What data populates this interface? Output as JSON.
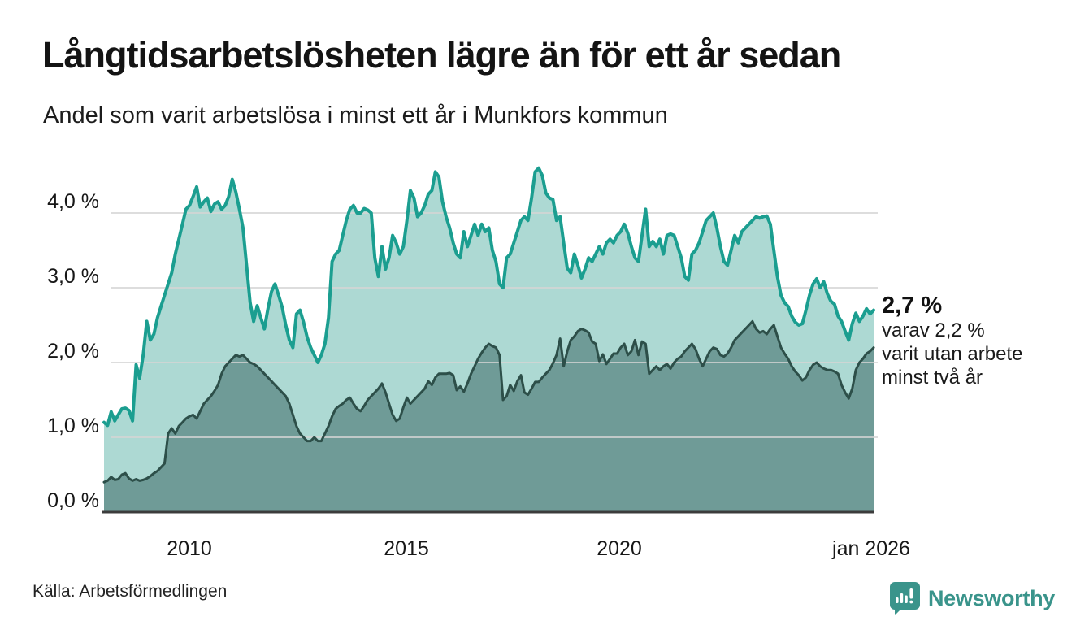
{
  "title": "Långtidsarbetslösheten lägre än för ett år sedan",
  "subtitle": "Andel som varit arbetslösa i minst ett år i Munkfors kommun",
  "annotation": {
    "value_label": "2,7 %",
    "line1": "varav 2,2 %",
    "line2": "varit utan arbete",
    "line3": "minst två år"
  },
  "source": "Källa: Arbetsförmedlingen",
  "brand": "Newsworthy",
  "colors": {
    "series1_line": "#1b9e90",
    "series1_fill": "#add9d3",
    "series2_line": "#2d4f49",
    "series2_fill": "#6f9b97",
    "grid": "#d4d4d4",
    "axis": "#3c3c3c",
    "logo": "#3a948b"
  },
  "chart_data": {
    "type": "area",
    "title": "Andel som varit arbetslösa i minst ett år i Munkfors kommun",
    "xlabel": "",
    "ylabel": "",
    "x_start": "2008-01",
    "x_end": "2026-01",
    "x_interval": "monthly",
    "ylim": [
      0,
      4.8
    ],
    "grid": true,
    "legend": "none",
    "yticks": [
      {
        "label": "0,0 %",
        "value": 0
      },
      {
        "label": "1,0 %",
        "value": 1
      },
      {
        "label": "2,0 %",
        "value": 2
      },
      {
        "label": "3,0 %",
        "value": 3
      },
      {
        "label": "4,0 %",
        "value": 4
      }
    ],
    "xticks": [
      {
        "label": "2010"
      },
      {
        "label": "2015"
      },
      {
        "label": "2020"
      },
      {
        "label": "jan 2026"
      }
    ],
    "series": [
      {
        "name": "Arbetslösa minst ett år",
        "end_value": 2.7,
        "end_label": "2,7 %",
        "values": [
          1.2,
          1.16,
          1.34,
          1.22,
          1.3,
          1.38,
          1.39,
          1.36,
          1.22,
          1.97,
          1.79,
          2.1,
          2.55,
          2.3,
          2.38,
          2.6,
          2.75,
          2.9,
          3.05,
          3.2,
          3.45,
          3.65,
          3.85,
          4.05,
          4.1,
          4.22,
          4.35,
          4.08,
          4.15,
          4.2,
          4.02,
          4.12,
          4.15,
          4.05,
          4.1,
          4.22,
          4.45,
          4.28,
          4.05,
          3.8,
          3.3,
          2.8,
          2.55,
          2.76,
          2.6,
          2.45,
          2.72,
          2.95,
          3.05,
          2.9,
          2.74,
          2.5,
          2.3,
          2.2,
          2.65,
          2.7,
          2.54,
          2.34,
          2.2,
          2.1,
          2.0,
          2.1,
          2.25,
          2.6,
          3.35,
          3.45,
          3.5,
          3.7,
          3.9,
          4.05,
          4.1,
          4.0,
          4.0,
          4.06,
          4.04,
          4.0,
          3.4,
          3.15,
          3.55,
          3.25,
          3.4,
          3.7,
          3.6,
          3.45,
          3.55,
          3.9,
          4.3,
          4.2,
          3.95,
          4.0,
          4.1,
          4.25,
          4.3,
          4.55,
          4.48,
          4.15,
          3.95,
          3.8,
          3.6,
          3.45,
          3.4,
          3.75,
          3.55,
          3.7,
          3.85,
          3.7,
          3.85,
          3.75,
          3.8,
          3.5,
          3.35,
          3.05,
          3.0,
          3.4,
          3.45,
          3.6,
          3.75,
          3.9,
          3.95,
          3.9,
          4.2,
          4.55,
          4.6,
          4.5,
          4.27,
          4.2,
          4.18,
          3.9,
          3.95,
          3.6,
          3.26,
          3.2,
          3.45,
          3.3,
          3.13,
          3.25,
          3.4,
          3.35,
          3.45,
          3.55,
          3.45,
          3.6,
          3.65,
          3.6,
          3.7,
          3.75,
          3.85,
          3.73,
          3.55,
          3.4,
          3.35,
          3.7,
          4.05,
          3.55,
          3.62,
          3.55,
          3.65,
          3.45,
          3.7,
          3.72,
          3.7,
          3.55,
          3.4,
          3.15,
          3.1,
          3.45,
          3.5,
          3.6,
          3.75,
          3.9,
          3.95,
          4.0,
          3.8,
          3.55,
          3.35,
          3.3,
          3.5,
          3.7,
          3.6,
          3.75,
          3.8,
          3.85,
          3.9,
          3.95,
          3.93,
          3.95,
          3.96,
          3.85,
          3.5,
          3.15,
          2.9,
          2.8,
          2.75,
          2.62,
          2.54,
          2.5,
          2.52,
          2.7,
          2.9,
          3.05,
          3.12,
          3.0,
          3.08,
          2.92,
          2.82,
          2.78,
          2.62,
          2.55,
          2.42,
          2.3,
          2.52,
          2.66,
          2.55,
          2.62,
          2.72,
          2.65,
          2.7
        ]
      },
      {
        "name": "Arbetslösa minst två år",
        "end_value": 2.2,
        "end_label": "2,2 %",
        "values": [
          0.4,
          0.42,
          0.47,
          0.43,
          0.44,
          0.5,
          0.52,
          0.45,
          0.42,
          0.44,
          0.42,
          0.43,
          0.45,
          0.48,
          0.52,
          0.55,
          0.6,
          0.65,
          1.05,
          1.12,
          1.05,
          1.15,
          1.2,
          1.25,
          1.28,
          1.3,
          1.25,
          1.35,
          1.45,
          1.5,
          1.55,
          1.62,
          1.7,
          1.85,
          1.95,
          2.0,
          2.05,
          2.1,
          2.08,
          2.1,
          2.05,
          2.0,
          1.98,
          1.95,
          1.9,
          1.85,
          1.8,
          1.75,
          1.7,
          1.65,
          1.6,
          1.55,
          1.45,
          1.3,
          1.15,
          1.05,
          1.0,
          0.95,
          0.95,
          1.0,
          0.95,
          0.95,
          1.05,
          1.15,
          1.28,
          1.38,
          1.42,
          1.45,
          1.5,
          1.53,
          1.45,
          1.38,
          1.35,
          1.42,
          1.5,
          1.55,
          1.6,
          1.65,
          1.72,
          1.6,
          1.45,
          1.3,
          1.22,
          1.25,
          1.4,
          1.53,
          1.45,
          1.5,
          1.55,
          1.6,
          1.65,
          1.75,
          1.7,
          1.8,
          1.85,
          1.85,
          1.85,
          1.86,
          1.83,
          1.63,
          1.68,
          1.61,
          1.72,
          1.85,
          1.95,
          2.05,
          2.13,
          2.2,
          2.25,
          2.22,
          2.2,
          2.1,
          1.5,
          1.55,
          1.7,
          1.62,
          1.75,
          1.83,
          1.6,
          1.57,
          1.65,
          1.74,
          1.74,
          1.8,
          1.85,
          1.9,
          1.99,
          2.1,
          2.32,
          1.95,
          2.15,
          2.3,
          2.35,
          2.42,
          2.45,
          2.43,
          2.4,
          2.28,
          2.25,
          2.02,
          2.11,
          1.98,
          2.05,
          2.12,
          2.12,
          2.2,
          2.25,
          2.1,
          2.15,
          2.3,
          2.1,
          2.28,
          2.25,
          1.85,
          1.9,
          1.95,
          1.9,
          1.95,
          1.98,
          1.92,
          2.0,
          2.05,
          2.08,
          2.15,
          2.2,
          2.25,
          2.18,
          2.05,
          1.95,
          2.05,
          2.15,
          2.2,
          2.18,
          2.1,
          2.08,
          2.12,
          2.2,
          2.3,
          2.35,
          2.4,
          2.45,
          2.5,
          2.55,
          2.45,
          2.4,
          2.42,
          2.38,
          2.45,
          2.5,
          2.35,
          2.2,
          2.12,
          2.05,
          1.95,
          1.88,
          1.83,
          1.76,
          1.8,
          1.9,
          1.97,
          2.0,
          1.95,
          1.92,
          1.9,
          1.9,
          1.88,
          1.85,
          1.7,
          1.6,
          1.52,
          1.65,
          1.9,
          2.0,
          2.05,
          2.12,
          2.15,
          2.2
        ]
      }
    ]
  }
}
